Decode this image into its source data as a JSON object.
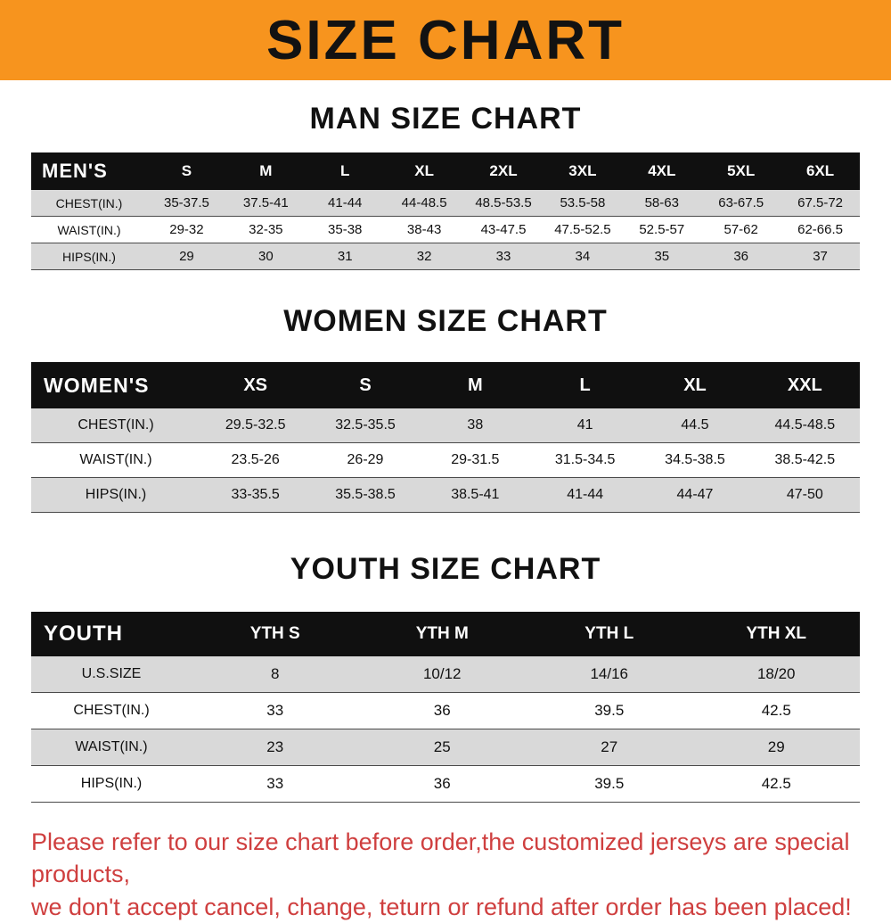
{
  "banner": {
    "title": "SIZE CHART"
  },
  "men": {
    "heading": "MAN SIZE CHART",
    "header": [
      "MEN'S",
      "S",
      "M",
      "L",
      "XL",
      "2XL",
      "3XL",
      "4XL",
      "5XL",
      "6XL"
    ],
    "rows": [
      {
        "label": "CHEST(IN.)",
        "values": [
          "35-37.5",
          "37.5-41",
          "41-44",
          "44-48.5",
          "48.5-53.5",
          "53.5-58",
          "58-63",
          "63-67.5",
          "67.5-72"
        ]
      },
      {
        "label": "WAIST(IN.)",
        "values": [
          "29-32",
          "32-35",
          "35-38",
          "38-43",
          "43-47.5",
          "47.5-52.5",
          "52.5-57",
          "57-62",
          "62-66.5"
        ]
      },
      {
        "label": "HIPS(IN.)",
        "values": [
          "29",
          "30",
          "31",
          "32",
          "33",
          "34",
          "35",
          "36",
          "37"
        ]
      }
    ]
  },
  "women": {
    "heading": "WOMEN SIZE CHART",
    "header": [
      "WOMEN'S",
      "XS",
      "S",
      "M",
      "L",
      "XL",
      "XXL"
    ],
    "rows": [
      {
        "label": "CHEST(IN.)",
        "values": [
          "29.5-32.5",
          "32.5-35.5",
          "38",
          "41",
          "44.5",
          "44.5-48.5"
        ]
      },
      {
        "label": "WAIST(IN.)",
        "values": [
          "23.5-26",
          "26-29",
          "29-31.5",
          "31.5-34.5",
          "34.5-38.5",
          "38.5-42.5"
        ]
      },
      {
        "label": "HIPS(IN.)",
        "values": [
          "33-35.5",
          "35.5-38.5",
          "38.5-41",
          "41-44",
          "44-47",
          "47-50"
        ]
      }
    ]
  },
  "youth": {
    "heading": "YOUTH SIZE CHART",
    "header": [
      "YOUTH",
      "YTH S",
      "YTH M",
      "YTH L",
      "YTH XL"
    ],
    "rows": [
      {
        "label": "U.S.SIZE",
        "values": [
          "8",
          "10/12",
          "14/16",
          "18/20"
        ]
      },
      {
        "label": "CHEST(IN.)",
        "values": [
          "33",
          "36",
          "39.5",
          "42.5"
        ]
      },
      {
        "label": "WAIST(IN.)",
        "values": [
          "23",
          "25",
          "27",
          "29"
        ]
      },
      {
        "label": "HIPS(IN.)",
        "values": [
          "33",
          "36",
          "39.5",
          "42.5"
        ]
      }
    ]
  },
  "footer": {
    "line1": "Please refer to our size chart before order,the customized jerseys are special products,",
    "line2": "we don't accept cancel, change, teturn or refund after order has been placed!"
  },
  "colors": {
    "banner_bg": "#f7941e",
    "table_header_bg": "#101010",
    "row_alt_bg": "#d9d9d9",
    "footer_red": "#cf3f3f"
  }
}
